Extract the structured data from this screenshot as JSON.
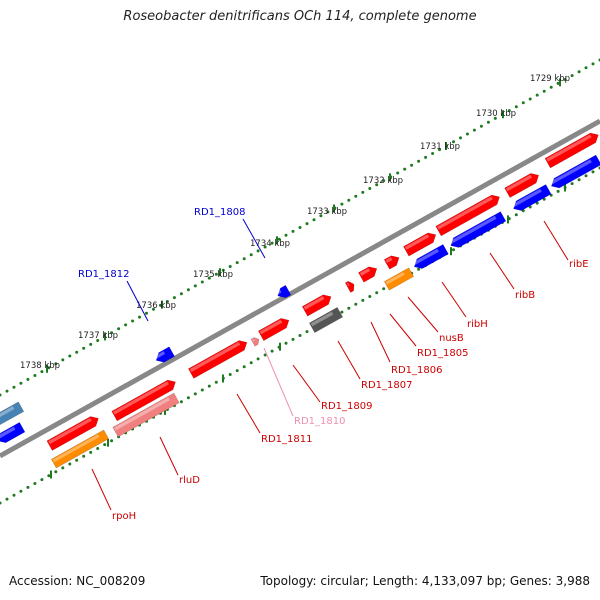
{
  "title": "Roseobacter denitrificans OCh 114, complete genome",
  "footer": {
    "accession": "Accession: NC_008209",
    "summary": "Topology: circular; Length: 4,133,097 bp; Genes: 3,988"
  },
  "colors": {
    "backbone": "#888888",
    "tick": "#1f7a1f",
    "forward_gene": "#ff0000",
    "reverse_gene": "#0000ff",
    "rrna": "#ff8c00",
    "pseudo": "#f08080",
    "dark": "#555555",
    "edge_gene": "#4682b4"
  },
  "ruler": {
    "unit": "kbp",
    "labels": [
      "1729 kbp",
      "1730 kbp",
      "1731 kbp",
      "1732 kbp",
      "1733 kbp",
      "1734 kbp",
      "1735 kbp",
      "1736 kbp",
      "1737 kbp",
      "1738 kbp"
    ]
  },
  "gene_labels": [
    {
      "id": "ribE",
      "text": "ribE",
      "color": "#cc0000"
    },
    {
      "id": "ribB",
      "text": "ribB",
      "color": "#cc0000"
    },
    {
      "id": "ribH",
      "text": "ribH",
      "color": "#cc0000"
    },
    {
      "id": "nusB",
      "text": "nusB",
      "color": "#cc0000"
    },
    {
      "id": "RD1_1805",
      "text": "RD1_1805",
      "color": "#cc0000"
    },
    {
      "id": "RD1_1806",
      "text": "RD1_1806",
      "color": "#cc0000"
    },
    {
      "id": "RD1_1807",
      "text": "RD1_1807",
      "color": "#cc0000"
    },
    {
      "id": "RD1_1809",
      "text": "RD1_1809",
      "color": "#cc0000"
    },
    {
      "id": "RD1_1810",
      "text": "RD1_1810",
      "color": "#f08fb0"
    },
    {
      "id": "RD1_1811",
      "text": "RD1_1811",
      "color": "#cc0000"
    },
    {
      "id": "rluD",
      "text": "rluD",
      "color": "#cc0000"
    },
    {
      "id": "rpoH",
      "text": "rpoH",
      "color": "#cc0000"
    },
    {
      "id": "RD1_1808",
      "text": "RD1_1808",
      "color": "#0000cc"
    },
    {
      "id": "RD1_1812",
      "text": "RD1_1812",
      "color": "#0000cc"
    }
  ]
}
